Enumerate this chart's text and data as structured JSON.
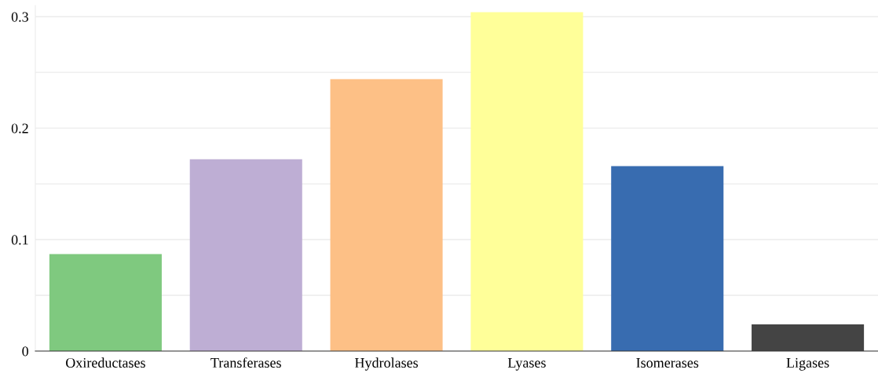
{
  "chart_data": {
    "type": "bar",
    "categories": [
      "Oxireductases",
      "Transferases",
      "Hydrolases",
      "Lyases",
      "Isomerases",
      "Ligases"
    ],
    "values": [
      0.087,
      0.172,
      0.244,
      0.304,
      0.166,
      0.024
    ],
    "colors": [
      "#7fc97f",
      "#beaed4",
      "#fdc086",
      "#ffff99",
      "#386cb0",
      "#444444"
    ],
    "ylim": [
      0,
      0.31
    ],
    "yticks": [
      0,
      {
        "value": 0.05,
        "label": null
      },
      0.1,
      {
        "value": 0.15,
        "label": null
      },
      0.2,
      {
        "value": 0.25,
        "label": null
      },
      0.3
    ],
    "grid": "y",
    "legend": false
  }
}
